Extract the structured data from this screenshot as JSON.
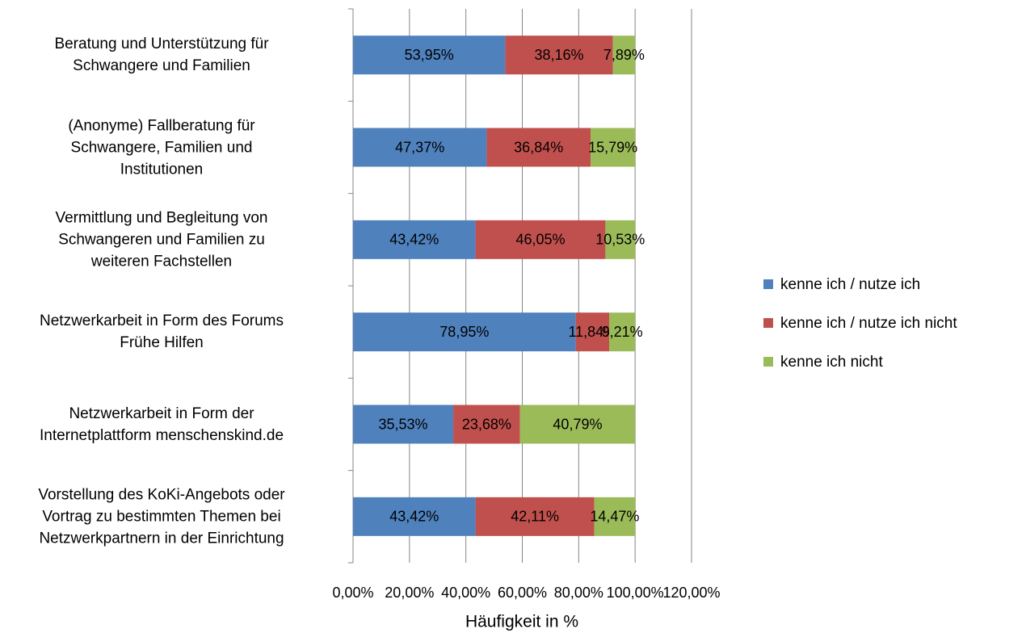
{
  "chart_data": {
    "type": "stacked-barh",
    "xlabel": "Häufigkeit in %",
    "categories": [
      "Beratung und Unterstützung für\nSchwangere und Familien",
      "(Anonyme) Fallberatung für\nSchwangere, Familien und\nInstitutionen",
      "Vermittlung und Begleitung von\nSchwangeren und Familien zu\nweiteren Fachstellen",
      "Netzwerkarbeit in Form des Forums\nFrühe Hilfen",
      "Netzwerkarbeit in Form der\nInternetplattform menschenskind.de",
      "Vorstellung des KoKi-Angebots oder\nVortrag zu bestimmten Themen bei\nNetzwerkpartnern in der Einrichtung"
    ],
    "series": [
      {
        "name": "kenne ich / nutze ich",
        "color": "#4f81bd",
        "values": [
          53.95,
          47.37,
          43.42,
          78.95,
          35.53,
          43.42
        ],
        "value_labels": [
          "53,95%",
          "47,37%",
          "43,42%",
          "78,95%",
          "35,53%",
          "43,42%"
        ]
      },
      {
        "name": "kenne ich / nutze ich nicht",
        "color": "#c0504d",
        "values": [
          38.16,
          36.84,
          46.05,
          11.84,
          23.68,
          42.11
        ],
        "value_labels": [
          "38,16%",
          "36,84%",
          "46,05%",
          "11,84%",
          "23,68%",
          "42,11%"
        ]
      },
      {
        "name": "kenne ich nicht",
        "color": "#9bbb59",
        "values": [
          7.89,
          15.79,
          10.53,
          9.21,
          40.79,
          14.47
        ],
        "value_labels": [
          "7,89%",
          "15,79%",
          "10,53%",
          "9,21%",
          "40,79%",
          "14,47%"
        ]
      }
    ],
    "xlim": [
      0,
      120
    ],
    "xticks": [
      {
        "value": 0,
        "label": "0,00%"
      },
      {
        "value": 20,
        "label": "20,00%"
      },
      {
        "value": 40,
        "label": "40,00%"
      },
      {
        "value": 60,
        "label": "60,00%"
      },
      {
        "value": 80,
        "label": "80,00%"
      },
      {
        "value": 100,
        "label": "100,00%"
      },
      {
        "value": 120,
        "label": "120,00%"
      }
    ],
    "grid": true,
    "legend": "right"
  }
}
